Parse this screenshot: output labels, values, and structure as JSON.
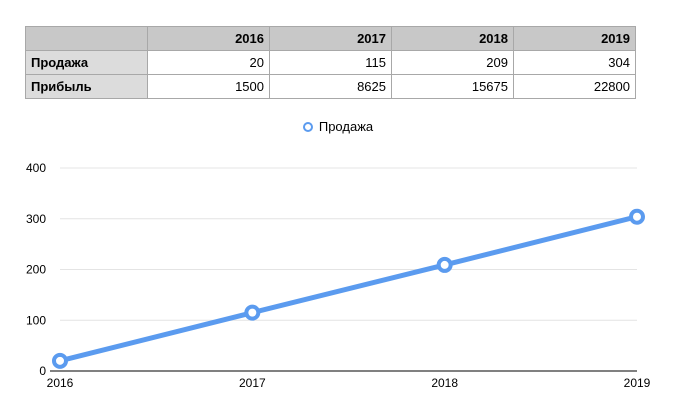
{
  "table": {
    "corner": "",
    "years": [
      "2016",
      "2017",
      "2018",
      "2019"
    ],
    "rows": [
      {
        "label": "Продажа",
        "values": [
          "20",
          "115",
          "209",
          "304"
        ]
      },
      {
        "label": "Прибыль",
        "values": [
          "1500",
          "8625",
          "15675",
          "22800"
        ]
      }
    ]
  },
  "chart_data": {
    "type": "line",
    "title": "",
    "xlabel": "",
    "ylabel": "",
    "categories": [
      "2016",
      "2017",
      "2018",
      "2019"
    ],
    "series": [
      {
        "name": "Продажа",
        "values": [
          20,
          115,
          209,
          304
        ],
        "color": "#5b9bef"
      }
    ],
    "ylim": [
      0,
      400
    ],
    "yticks": [
      0,
      100,
      200,
      300,
      400
    ],
    "grid": true,
    "legend": "top-center"
  }
}
